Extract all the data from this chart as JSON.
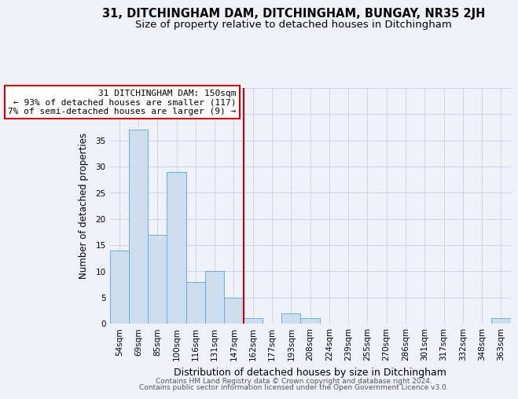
{
  "title": "31, DITCHINGHAM DAM, DITCHINGHAM, BUNGAY, NR35 2JH",
  "subtitle": "Size of property relative to detached houses in Ditchingham",
  "xlabel": "Distribution of detached houses by size in Ditchingham",
  "ylabel": "Number of detached properties",
  "bin_labels": [
    "54sqm",
    "69sqm",
    "85sqm",
    "100sqm",
    "116sqm",
    "131sqm",
    "147sqm",
    "162sqm",
    "177sqm",
    "193sqm",
    "208sqm",
    "224sqm",
    "239sqm",
    "255sqm",
    "270sqm",
    "286sqm",
    "301sqm",
    "317sqm",
    "332sqm",
    "348sqm",
    "363sqm"
  ],
  "bin_values": [
    14,
    37,
    17,
    29,
    8,
    10,
    5,
    1,
    0,
    2,
    1,
    0,
    0,
    0,
    0,
    0,
    0,
    0,
    0,
    0,
    1
  ],
  "bar_color": "#ccddf0",
  "bar_edge_color": "#6baed6",
  "red_line_index": 6,
  "annotation_title": "31 DITCHINGHAM DAM: 150sqm",
  "annotation_line1": "← 93% of detached houses are smaller (117)",
  "annotation_line2": "7% of semi-detached houses are larger (9) →",
  "annotation_box_edge": "#cc0000",
  "ylim": [
    0,
    45
  ],
  "yticks": [
    0,
    5,
    10,
    15,
    20,
    25,
    30,
    35,
    40,
    45
  ],
  "footer1": "Contains HM Land Registry data © Crown copyright and database right 2024.",
  "footer2": "Contains public sector information licensed under the Open Government Licence v3.0.",
  "background_color": "#eef2f8",
  "grid_color": "#c8cfe0",
  "title_fontsize": 10.5,
  "subtitle_fontsize": 9.5,
  "xlabel_fontsize": 9,
  "ylabel_fontsize": 8.5,
  "tick_fontsize": 7.5,
  "footer_fontsize": 6.5
}
